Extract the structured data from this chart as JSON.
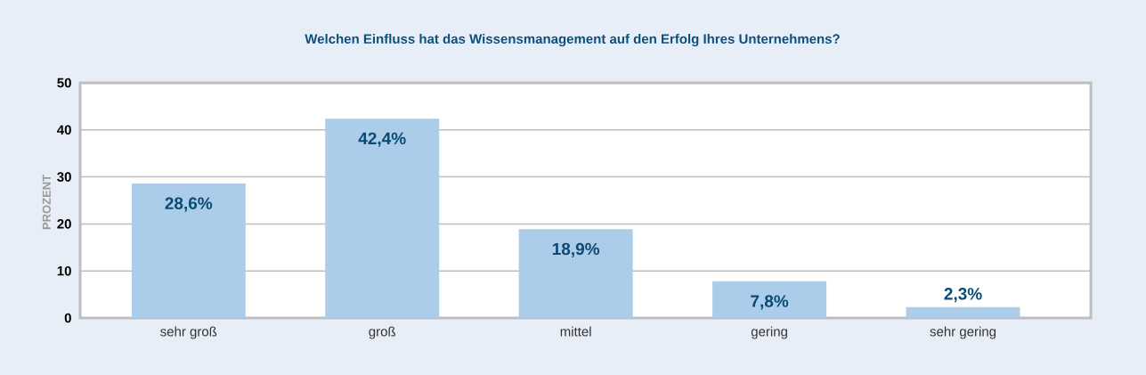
{
  "chart_data": {
    "type": "bar",
    "title": "Welchen Einfluss hat das Wissensmanagement auf den Erfolg Ihres Unternehmens?",
    "ylabel": "PROZENT",
    "categories": [
      "sehr groß",
      "groß",
      "mittel",
      "gering",
      "sehr gering"
    ],
    "values": [
      28.6,
      42.4,
      18.9,
      7.8,
      2.3
    ],
    "value_labels": [
      "28,6%",
      "42,4%",
      "18,9%",
      "7,8%",
      "2,3%"
    ],
    "color": "#abcdea",
    "ylim": [
      0,
      50
    ],
    "yticks": [
      0,
      10,
      20,
      30,
      40,
      50
    ],
    "grid": "y"
  }
}
